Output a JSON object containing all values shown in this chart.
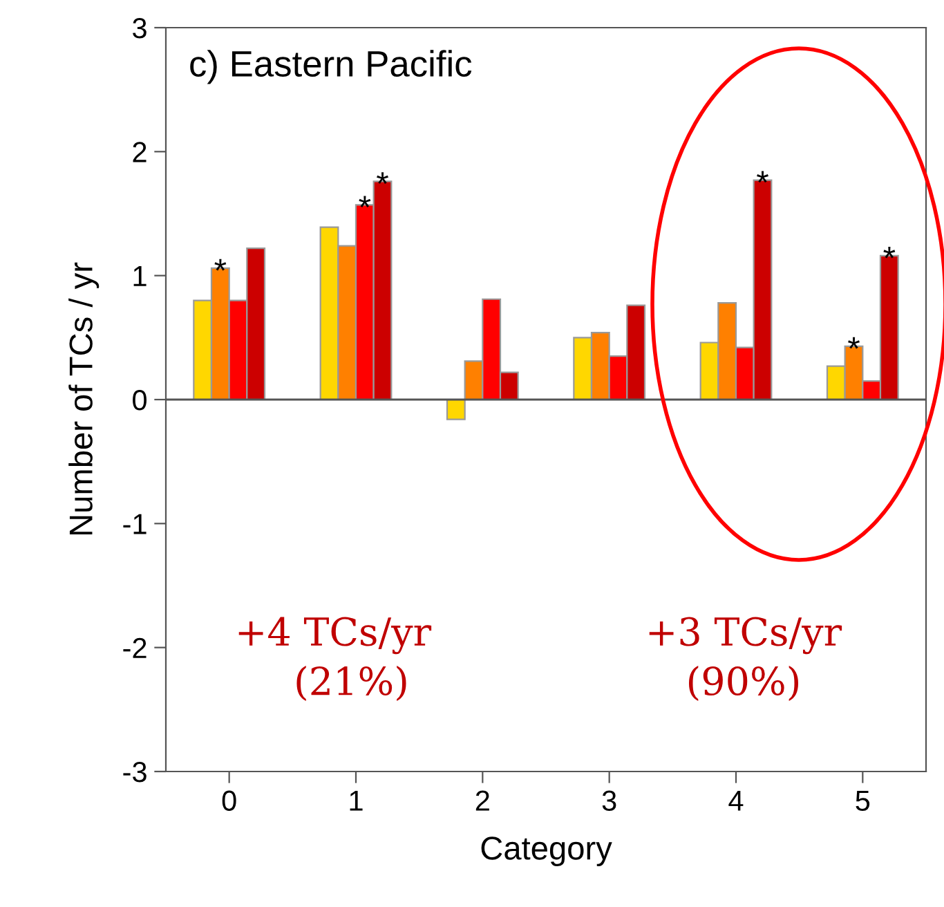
{
  "chart_data": {
    "type": "bar",
    "title": "c) Eastern Pacific",
    "xlabel": "Category",
    "ylabel": "Number of TCs / yr",
    "categories": [
      "0",
      "1",
      "2",
      "3",
      "4",
      "5"
    ],
    "series": [
      {
        "color": "#ffd700",
        "values": [
          0.8,
          1.39,
          -0.16,
          0.5,
          0.46,
          0.27
        ]
      },
      {
        "color": "#ff8000",
        "values": [
          1.06,
          1.24,
          0.31,
          0.54,
          0.78,
          0.43
        ],
        "value_labels": [
          "*",
          null,
          null,
          null,
          null,
          "*"
        ]
      },
      {
        "color": "#ff0000",
        "values": [
          0.8,
          1.57,
          0.81,
          0.35,
          0.42,
          0.15
        ],
        "value_labels": [
          null,
          "*",
          null,
          null,
          null,
          null
        ]
      },
      {
        "color": "#cc0000",
        "values": [
          1.22,
          1.76,
          0.22,
          0.76,
          1.77,
          1.16
        ],
        "value_labels": [
          null,
          "*",
          null,
          null,
          "*",
          "*"
        ]
      }
    ],
    "ylim": [
      -3,
      3
    ],
    "yticks": [
      -3,
      -2,
      -1,
      0,
      1,
      2,
      3
    ],
    "ref_lines": [
      {
        "axis": "y",
        "value": 0,
        "color": "#555555"
      }
    ],
    "annotations": [
      "+4 TCs/yr\n   (21%)",
      "+3 TCs/yr\n(90%)"
    ],
    "grid": false,
    "legend": false
  }
}
